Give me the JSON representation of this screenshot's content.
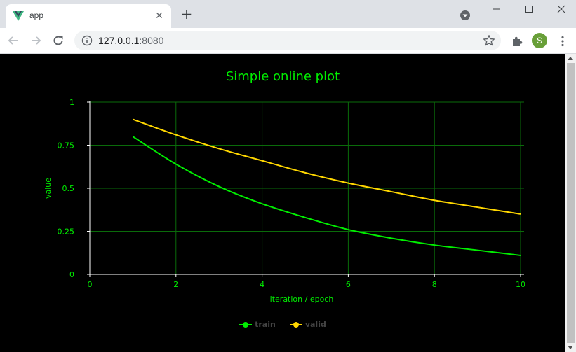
{
  "browser": {
    "tab_title": "app",
    "url_host": "127.0.0.1",
    "url_port": ":8080",
    "avatar_letter": "S"
  },
  "page": {
    "title": "Simple online plot"
  },
  "chart_data": {
    "type": "line",
    "title": "Simple online plot",
    "xlabel": "iteration / epoch",
    "ylabel": "value",
    "xlim": [
      0,
      10
    ],
    "ylim": [
      0,
      1
    ],
    "x_ticks": [
      "0",
      "2",
      "4",
      "6",
      "8",
      "10"
    ],
    "y_ticks": [
      "0",
      "0.25",
      "0.5",
      "0.75",
      "1"
    ],
    "grid": true,
    "legend_position": "bottom-center",
    "x": [
      1,
      2,
      3,
      4,
      5,
      6,
      7,
      8,
      9,
      10
    ],
    "series": [
      {
        "name": "train",
        "color": "#00ee00",
        "values": [
          0.8,
          0.64,
          0.51,
          0.41,
          0.33,
          0.26,
          0.21,
          0.17,
          0.14,
          0.11
        ]
      },
      {
        "name": "valid",
        "color": "#ffd700",
        "values": [
          0.9,
          0.81,
          0.73,
          0.66,
          0.59,
          0.53,
          0.48,
          0.43,
          0.39,
          0.35
        ]
      }
    ],
    "colors": {
      "axis": "#ffffff",
      "grid": "#0a6b0a",
      "text": "#00ee00",
      "legend_text": "#444444"
    }
  }
}
